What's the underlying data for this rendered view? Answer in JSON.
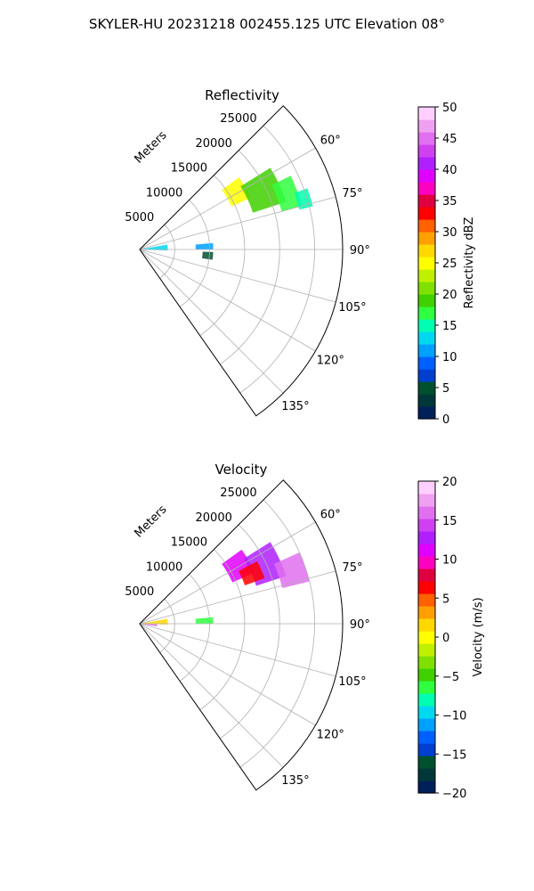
{
  "figure": {
    "suptitle": "SKYLER-HU  20231218  002455.125 UTC Elevation 08°"
  },
  "chart_data": [
    {
      "type": "heatmap",
      "projection": "polar-sector",
      "title": "Reflectivity",
      "range_label": "Meters",
      "range_ticks": [
        5000,
        10000,
        15000,
        20000,
        25000
      ],
      "azimuth_ticks": [
        "60°",
        "75°",
        "90°",
        "105°",
        "120°",
        "135°"
      ],
      "azimuth_tick_values": [
        60,
        75,
        90,
        105,
        120,
        135
      ],
      "azimuth_range": [
        45,
        145
      ],
      "range_max": 29000,
      "grid": true,
      "colorbar": {
        "label": "Reflectivity dBZ",
        "min": 0,
        "max": 50,
        "ticks": [
          "0",
          "5",
          "10",
          "15",
          "20",
          "25",
          "30",
          "35",
          "40",
          "45",
          "50"
        ],
        "tick_values": [
          0,
          5,
          10,
          15,
          20,
          25,
          30,
          35,
          40,
          45,
          50
        ],
        "colors": [
          "#00205a",
          "#00383a",
          "#005030",
          "#003fd0",
          "#0060ff",
          "#00a0ff",
          "#00d8f0",
          "#00ffb0",
          "#30ff40",
          "#40d000",
          "#80e000",
          "#c0f000",
          "#ffff00",
          "#ffd800",
          "#ffa000",
          "#ff6000",
          "#ff0000",
          "#e00040",
          "#ff00c0",
          "#e000ff",
          "#b020ff",
          "#d040f0",
          "#e070f0",
          "#f0a0f0",
          "#ffd0ff"
        ]
      },
      "echo_regions": [
        {
          "az": [
            54,
            65
          ],
          "r": [
            14500,
            17500
          ],
          "value": 24
        },
        {
          "az": [
            58,
            72
          ],
          "r": [
            17000,
            22000
          ],
          "value": 19
        },
        {
          "az": [
            64,
            75
          ],
          "r": [
            21000,
            24000
          ],
          "value": 17
        },
        {
          "az": [
            70,
            76
          ],
          "r": [
            23500,
            25500
          ],
          "value": 14
        },
        {
          "az": [
            80,
            92
          ],
          "r": [
            500,
            4000
          ],
          "value": 12
        },
        {
          "az": [
            85,
            90
          ],
          "r": [
            8000,
            10500
          ],
          "value": 11
        },
        {
          "az": [
            92,
            98
          ],
          "r": [
            9000,
            10500
          ],
          "value": 5
        }
      ]
    },
    {
      "type": "heatmap",
      "projection": "polar-sector",
      "title": "Velocity",
      "range_label": "Meters",
      "range_ticks": [
        5000,
        10000,
        15000,
        20000,
        25000
      ],
      "azimuth_ticks": [
        "60°",
        "75°",
        "90°",
        "105°",
        "120°",
        "135°"
      ],
      "azimuth_tick_values": [
        60,
        75,
        90,
        105,
        120,
        135
      ],
      "azimuth_range": [
        45,
        145
      ],
      "range_max": 29000,
      "grid": true,
      "colorbar": {
        "label": "Velocity (m/s)",
        "min": -20,
        "max": 20,
        "ticks": [
          "−20",
          "−15",
          "−10",
          "−5",
          "0",
          "5",
          "10",
          "15",
          "20"
        ],
        "tick_values": [
          -20,
          -15,
          -10,
          -5,
          0,
          5,
          10,
          15,
          20
        ],
        "colors": [
          "#00205a",
          "#00383a",
          "#005030",
          "#003fd0",
          "#0060ff",
          "#00a0ff",
          "#00d8f0",
          "#00ffb0",
          "#30ff40",
          "#40d000",
          "#80e000",
          "#c0f000",
          "#ffff00",
          "#ffd800",
          "#ffa000",
          "#ff6000",
          "#ff0000",
          "#e00040",
          "#ff00c0",
          "#e000ff",
          "#b020ff",
          "#d040f0",
          "#e070f0",
          "#f0a0f0",
          "#ffd0ff"
        ]
      },
      "echo_regions": [
        {
          "az": [
            54,
            66
          ],
          "r": [
            14500,
            18000
          ],
          "value": 11
        },
        {
          "az": [
            58,
            72
          ],
          "r": [
            17500,
            22000
          ],
          "value": 13
        },
        {
          "az": [
            62,
            70
          ],
          "r": [
            16000,
            19000
          ],
          "value": 7
        },
        {
          "az": [
            66,
            76
          ],
          "r": [
            21000,
            25000
          ],
          "value": 16
        },
        {
          "az": [
            80,
            92
          ],
          "r": [
            500,
            4000
          ],
          "value": 1
        },
        {
          "az": [
            85,
            90
          ],
          "r": [
            8000,
            10500
          ],
          "value": -6
        },
        {
          "az": [
            93,
            98
          ],
          "r": [
            500,
            2500
          ],
          "value": 15
        }
      ]
    }
  ]
}
